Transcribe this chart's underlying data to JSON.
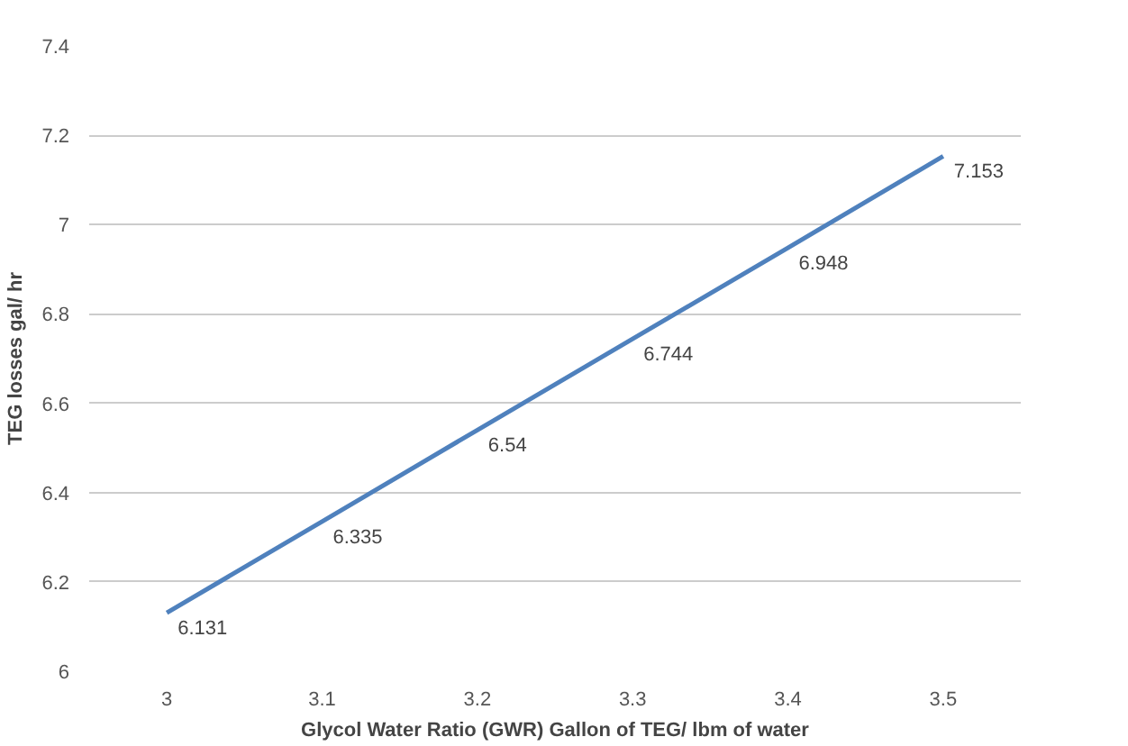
{
  "chart_data": {
    "type": "line",
    "xlabel": "Glycol Water Ratio (GWR) Gallon of TEG/ lbm of water",
    "ylabel": "TEG losses gal/ hr",
    "categories": [
      "3",
      "3.1",
      "3.2",
      "3.3",
      "3.4",
      "3.5"
    ],
    "series": [
      {
        "color": "#4f81bd",
        "values": [
          6.131,
          6.335,
          6.54,
          6.744,
          6.948,
          7.153
        ]
      }
    ],
    "ylim": [
      6,
      7.4
    ],
    "yticks": [
      6,
      6.2,
      6.4,
      6.6,
      6.8,
      7,
      7.2,
      7.4
    ],
    "grid": "y",
    "data_labels": true
  }
}
